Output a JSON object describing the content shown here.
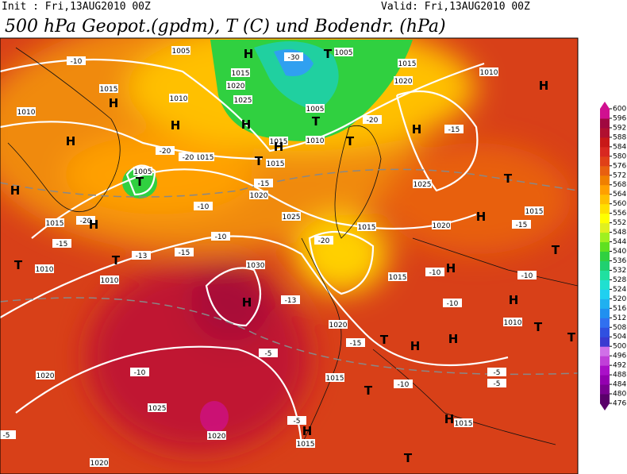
{
  "header": {
    "init": "Init : Fri,13AUG2010 00Z",
    "valid": "Valid: Fri,13AUG2010 00Z",
    "title": "500 hPa Geopot.(gpdm), T (C) und Bodendr. (hPa)"
  },
  "colorbar": {
    "ticks": [
      "476",
      "480",
      "484",
      "488",
      "492",
      "496",
      "500",
      "504",
      "508",
      "512",
      "516",
      "520",
      "524",
      "528",
      "532",
      "536",
      "540",
      "544",
      "548",
      "552",
      "556",
      "560",
      "564",
      "568",
      "572",
      "576",
      "580",
      "584",
      "588",
      "592",
      "596",
      "600"
    ],
    "colors": [
      "#5a006a",
      "#7a0090",
      "#9400b0",
      "#aa10c8",
      "#c040d8",
      "#d070e8",
      "#3a3ad0",
      "#3050e0",
      "#3070f0",
      "#2090f0",
      "#20b0f0",
      "#20d0f0",
      "#20e0d0",
      "#20e0a0",
      "#20d070",
      "#30d040",
      "#60e020",
      "#a0f020",
      "#e0f020",
      "#ffff00",
      "#ffe000",
      "#ffc000",
      "#ffa000",
      "#f08000",
      "#e86010",
      "#e04018",
      "#d82820",
      "#c81818",
      "#b01030",
      "#a00840",
      "#d01090"
    ]
  },
  "map_labels": [
    "1005",
    "1015",
    "1005",
    "1015",
    "1010",
    "1020",
    "1015",
    "1010",
    "1010",
    "1020",
    "1025",
    "1005",
    "1010",
    "1015",
    "1015",
    "1015",
    "1005",
    "1020",
    "1025",
    "1025",
    "1020",
    "1015",
    "1015",
    "1015",
    "1010",
    "1010",
    "1030",
    "1015",
    "1020",
    "1010",
    "1020",
    "1025",
    "1020",
    "1015",
    "1020",
    "1015",
    "1015",
    "-10",
    "-30",
    "-20",
    "-15",
    "-20",
    "-20",
    "-15",
    "-10",
    "-15",
    "-20",
    "-13",
    "-10",
    "-15",
    "-20",
    "-10",
    "-13",
    "-10",
    "-15",
    "-5",
    "-10",
    "-10",
    "-5",
    "-5",
    "-5",
    "-5",
    "-15",
    "-10",
    "H",
    "T",
    "H",
    "H",
    "H",
    "H",
    "H",
    "T",
    "H",
    "T",
    "H",
    "T",
    "H",
    "T",
    "H",
    "T",
    "T",
    "H",
    "T",
    "H",
    "H",
    "H",
    "T",
    "T",
    "H",
    "H",
    "T",
    "T",
    "H",
    "H",
    "T",
    "T"
  ]
}
